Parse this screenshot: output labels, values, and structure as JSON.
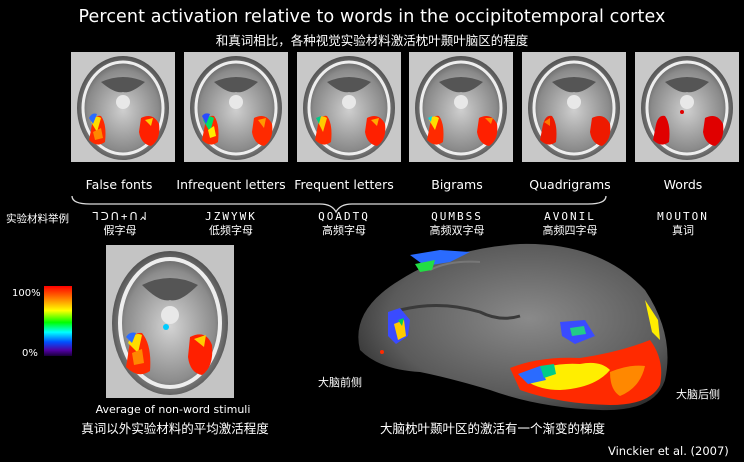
{
  "title": "Percent activation relative to words in the occipitotemporal cortex",
  "subtitle": "和真词相比，各种视觉实验材料激活枕叶颞叶脑区的程度",
  "side_label": "实验材料举例",
  "conditions": [
    {
      "label": "False fonts",
      "stimulus": "ᒣᑐᑎ+ᑎᖽ",
      "stimulus_cn": "假字母"
    },
    {
      "label": "Infrequent letters",
      "stimulus": "JZWYWK",
      "stimulus_cn": "低频字母"
    },
    {
      "label": "Frequent letters",
      "stimulus": "QOADTQ",
      "stimulus_cn": "高频字母"
    },
    {
      "label": "Bigrams",
      "stimulus": "QUMBSS",
      "stimulus_cn": "高频双字母"
    },
    {
      "label": "Quadrigrams",
      "stimulus": "AVONIL",
      "stimulus_cn": "高频四字母"
    },
    {
      "label": "Words",
      "stimulus": "MOUTON",
      "stimulus_cn": "真词"
    }
  ],
  "scale": {
    "max": "100%",
    "min": "0%"
  },
  "average_caption_en": "Average of non-word stimuli",
  "average_caption_cn": "真词以外实验材料的平均激活程度",
  "inflated_caption": "大脑枕叶颞叶区的激活有一个渐变的梯度",
  "anterior_label": "大脑前侧",
  "posterior_label": "大脑后侧",
  "credit": "Vinckier et al. (2007)"
}
